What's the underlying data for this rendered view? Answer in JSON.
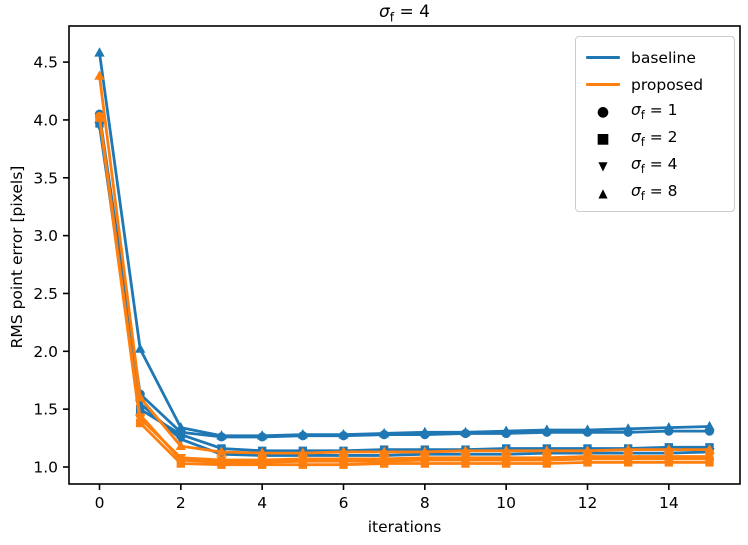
{
  "title": {
    "sym": "σ",
    "sub": "f",
    "rest": " = 4"
  },
  "axes": {
    "xlabel": "iterations",
    "ylabel": "RMS point error [pixels]"
  },
  "legend": {
    "items": [
      {
        "kind": "line",
        "color": "#1f77b4",
        "glyph": "",
        "pre": "baseline",
        "sub": "",
        "post": ""
      },
      {
        "kind": "line",
        "color": "#ff7f0e",
        "glyph": "",
        "pre": "proposed",
        "sub": "",
        "post": ""
      },
      {
        "kind": "marker",
        "color": "#000000",
        "glyph": "●",
        "pre": "σ",
        "sub": "f",
        "post": " = 1"
      },
      {
        "kind": "marker",
        "color": "#000000",
        "glyph": "■",
        "pre": "σ",
        "sub": "f",
        "post": " = 2"
      },
      {
        "kind": "marker",
        "color": "#000000",
        "glyph": "▼",
        "pre": "σ",
        "sub": "f",
        "post": " = 4"
      },
      {
        "kind": "marker",
        "color": "#000000",
        "glyph": "▲",
        "pre": "σ",
        "sub": "f",
        "post": " = 8"
      }
    ]
  },
  "chart_data": {
    "type": "line",
    "title": "σ_f = 4",
    "xlabel": "iterations",
    "ylabel": "RMS point error [pixels]",
    "x": [
      0,
      1,
      2,
      3,
      4,
      5,
      6,
      7,
      8,
      9,
      10,
      11,
      12,
      13,
      14,
      15
    ],
    "xlim": [
      -0.75,
      15.75
    ],
    "ylim": [
      0.853,
      4.812
    ],
    "xticks": [
      0,
      2,
      4,
      6,
      8,
      10,
      12,
      14
    ],
    "yticks": [
      1.0,
      1.5,
      2.0,
      2.5,
      3.0,
      3.5,
      4.0,
      4.5
    ],
    "ytick_labels": [
      "1.0",
      "1.5",
      "2.0",
      "2.5",
      "3.0",
      "3.5",
      "4.0",
      "4.5"
    ],
    "grid": false,
    "legend_position": "upper right",
    "colors": {
      "baseline": "#1f77b4",
      "proposed": "#ff7f0e"
    },
    "series": [
      {
        "name": "baseline σf=1",
        "group": "baseline",
        "marker": "circle",
        "color": "#1f77b4",
        "values": [
          4.05,
          1.63,
          1.3,
          1.26,
          1.26,
          1.27,
          1.27,
          1.28,
          1.28,
          1.29,
          1.29,
          1.3,
          1.3,
          1.3,
          1.31,
          1.31
        ]
      },
      {
        "name": "proposed σf=1",
        "group": "proposed",
        "marker": "circle",
        "color": "#ff7f0e",
        "values": [
          4.03,
          1.45,
          1.06,
          1.04,
          1.04,
          1.05,
          1.05,
          1.05,
          1.06,
          1.06,
          1.06,
          1.06,
          1.07,
          1.07,
          1.07,
          1.07
        ]
      },
      {
        "name": "baseline σf=2",
        "group": "baseline",
        "marker": "square",
        "color": "#1f77b4",
        "values": [
          3.97,
          1.5,
          1.28,
          1.16,
          1.14,
          1.14,
          1.14,
          1.15,
          1.15,
          1.15,
          1.16,
          1.16,
          1.16,
          1.16,
          1.17,
          1.17
        ]
      },
      {
        "name": "proposed σf=2",
        "group": "proposed",
        "marker": "square",
        "color": "#ff7f0e",
        "values": [
          4.0,
          1.38,
          1.03,
          1.02,
          1.02,
          1.02,
          1.02,
          1.03,
          1.03,
          1.03,
          1.03,
          1.03,
          1.04,
          1.04,
          1.04,
          1.04
        ]
      },
      {
        "name": "baseline σf=4",
        "group": "baseline",
        "marker": "triangle-down",
        "color": "#1f77b4",
        "values": [
          3.95,
          1.55,
          1.24,
          1.11,
          1.1,
          1.1,
          1.1,
          1.1,
          1.11,
          1.11,
          1.11,
          1.12,
          1.12,
          1.12,
          1.12,
          1.13
        ]
      },
      {
        "name": "proposed σf=4",
        "group": "proposed",
        "marker": "triangle-down",
        "color": "#ff7f0e",
        "values": [
          4.02,
          1.42,
          1.08,
          1.06,
          1.06,
          1.07,
          1.07,
          1.07,
          1.08,
          1.08,
          1.08,
          1.08,
          1.09,
          1.09,
          1.09,
          1.09
        ]
      },
      {
        "name": "baseline σf=8",
        "group": "baseline",
        "marker": "triangle-up",
        "color": "#1f77b4",
        "values": [
          4.58,
          2.02,
          1.34,
          1.27,
          1.27,
          1.28,
          1.28,
          1.29,
          1.3,
          1.3,
          1.31,
          1.32,
          1.32,
          1.33,
          1.34,
          1.35
        ]
      },
      {
        "name": "proposed σf=8",
        "group": "proposed",
        "marker": "triangle-up",
        "color": "#ff7f0e",
        "values": [
          4.38,
          1.6,
          1.18,
          1.13,
          1.12,
          1.12,
          1.13,
          1.13,
          1.13,
          1.14,
          1.14,
          1.14,
          1.14,
          1.15,
          1.15,
          1.15
        ]
      }
    ]
  }
}
